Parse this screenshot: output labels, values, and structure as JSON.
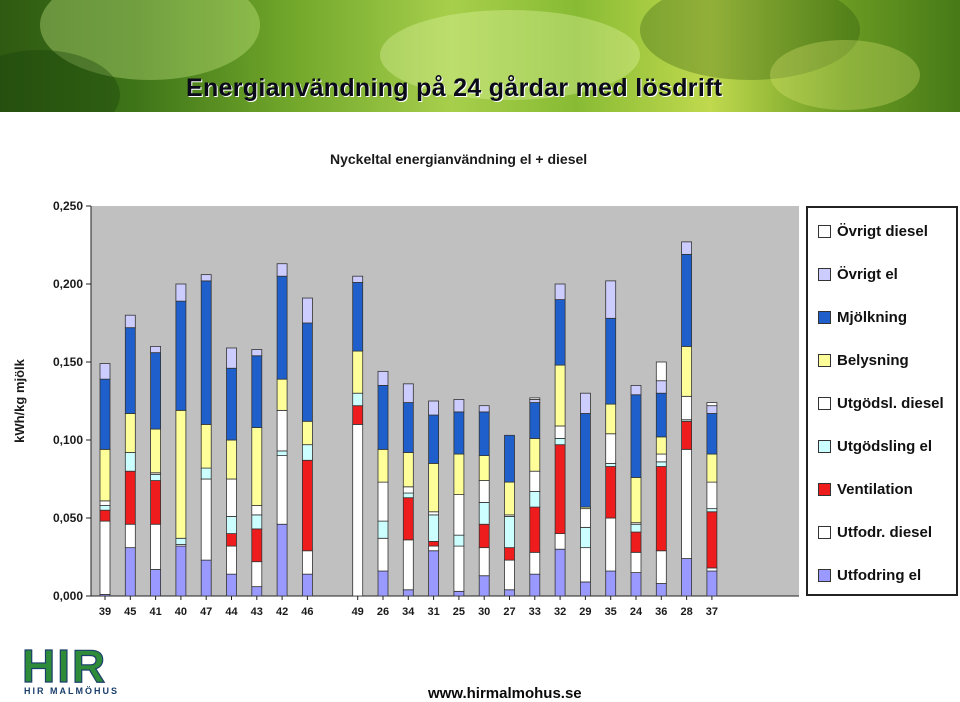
{
  "slide": {
    "title": "Energianvändning på 24 gårdar med lösdrift",
    "url": "www.hirmalmohus.se",
    "logo_text": "HIR",
    "logo_subtext": "HIR MALMÖHUS"
  },
  "colors": {
    "banner_start": "#2f5a12",
    "banner_end": "#477a18",
    "plot_background": "#c0c0c0",
    "logo_green": "#2e8b3a",
    "logo_blue": "#1b3f6b"
  },
  "chart_data": {
    "type": "stacked-bar",
    "title": "Nyckeltal energianvändning el + diesel",
    "xlabel": "",
    "ylabel": "kWh/kg mjölk",
    "ylim": [
      0,
      0.25
    ],
    "yticks": [
      "0,000",
      "0,050",
      "0,100",
      "0,150",
      "0,200",
      "0,250"
    ],
    "ytick_values": [
      0,
      0.05,
      0.1,
      0.15,
      0.2,
      0.25
    ],
    "grid": false,
    "legend_position": "right",
    "categories": [
      "39",
      "45",
      "41",
      "40",
      "47",
      "44",
      "43",
      "42",
      "46",
      "49",
      "26",
      "34",
      "31",
      "25",
      "30",
      "27",
      "33",
      "32",
      "29",
      "35",
      "24",
      "36",
      "28",
      "37"
    ],
    "gap_after_index": 8,
    "series": [
      {
        "name": "Utfodring el",
        "color": "#9999ff",
        "values": [
          0.001,
          0.031,
          0.017,
          0.032,
          0.023,
          0.014,
          0.006,
          0.046,
          0.014,
          0,
          0.016,
          0.004,
          0.029,
          0.003,
          0.013,
          0.004,
          0.014,
          0.03,
          0.009,
          0.016,
          0.015,
          0.008,
          0.024,
          0.016
        ]
      },
      {
        "name": "Utfodr. diesel",
        "color": "#ffffff",
        "values": [
          0.047,
          0.015,
          0.029,
          0.001,
          0.052,
          0.018,
          0.016,
          0.044,
          0.015,
          0.11,
          0.021,
          0.032,
          0.003,
          0.029,
          0.018,
          0.019,
          0.014,
          0.01,
          0.022,
          0.034,
          0.013,
          0.021,
          0.07,
          0.002
        ]
      },
      {
        "name": "Ventilation",
        "color": "#ee1c1c",
        "values": [
          0.007,
          0.034,
          0.028,
          0,
          0,
          0.008,
          0.021,
          0,
          0.058,
          0.012,
          0,
          0.027,
          0.003,
          0,
          0.015,
          0.008,
          0.029,
          0.057,
          0,
          0.033,
          0.013,
          0.054,
          0.018,
          0.036
        ]
      },
      {
        "name": "Utgödsling el",
        "color": "#ccffff",
        "values": [
          0.003,
          0.012,
          0.004,
          0.004,
          0.007,
          0.011,
          0.009,
          0.003,
          0.01,
          0.008,
          0.011,
          0.003,
          0.017,
          0.007,
          0.014,
          0.02,
          0.01,
          0.004,
          0.013,
          0.002,
          0.005,
          0.003,
          0.001,
          0.002
        ]
      },
      {
        "name": "Utgödsl. diesel",
        "color": "#ffffff",
        "values": [
          0.003,
          0,
          0.001,
          0,
          0,
          0.024,
          0.006,
          0.026,
          0,
          0,
          0.025,
          0.004,
          0.002,
          0.026,
          0.014,
          0.001,
          0.013,
          0.008,
          0.012,
          0.019,
          0.001,
          0.005,
          0.015,
          0.017
        ]
      },
      {
        "name": "Belysning",
        "color": "#ffff99",
        "values": [
          0.033,
          0.025,
          0.028,
          0.082,
          0.028,
          0.025,
          0.05,
          0.02,
          0.015,
          0.027,
          0.021,
          0.022,
          0.031,
          0.026,
          0.016,
          0.021,
          0.021,
          0.039,
          0.001,
          0.019,
          0.029,
          0.011,
          0.032,
          0.018
        ]
      },
      {
        "name": "Mjölkning",
        "color": "#1e5fcc",
        "values": [
          0.045,
          0.055,
          0.049,
          0.07,
          0.092,
          0.046,
          0.046,
          0.066,
          0.063,
          0.044,
          0.041,
          0.032,
          0.031,
          0.027,
          0.028,
          0.03,
          0.023,
          0.042,
          0.06,
          0.055,
          0.053,
          0.028,
          0.059,
          0.026
        ]
      },
      {
        "name": "Övrigt el",
        "color": "#ccccff",
        "values": [
          0.01,
          0.008,
          0.004,
          0.011,
          0.004,
          0.013,
          0.004,
          0.008,
          0.016,
          0.004,
          0.009,
          0.012,
          0.009,
          0.008,
          0.004,
          0,
          0.002,
          0.01,
          0.013,
          0.024,
          0.006,
          0.008,
          0.008,
          0.005
        ]
      },
      {
        "name": "Övrigt diesel",
        "color": "#ffffff",
        "values": [
          0,
          0,
          0,
          0,
          0,
          0,
          0,
          0,
          0,
          0,
          0,
          0,
          0,
          0,
          0,
          0,
          0.001,
          0,
          0,
          0,
          0,
          0.012,
          0,
          0.002
        ]
      }
    ]
  }
}
